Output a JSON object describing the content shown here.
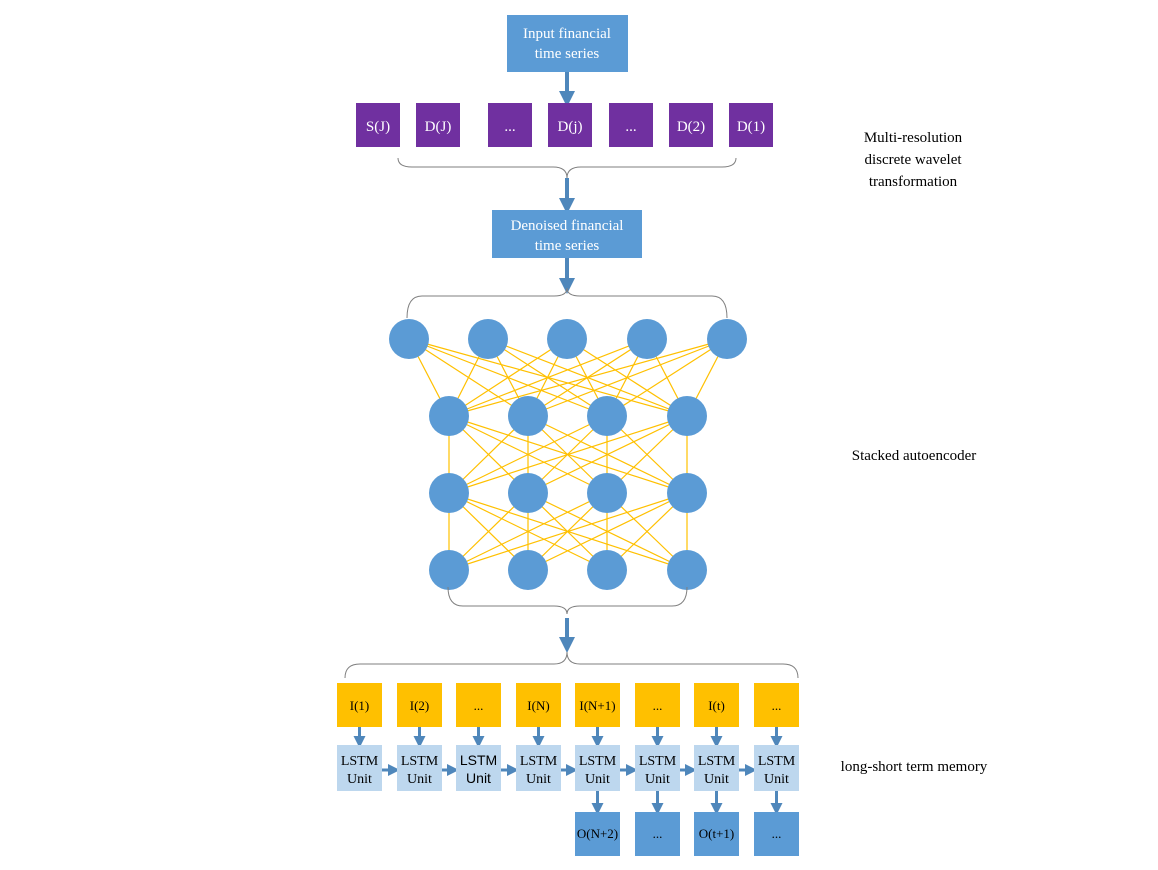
{
  "colors": {
    "blue_box": "#5b9bd5",
    "purple_box": "#7030a0",
    "orange_box": "#ffc000",
    "light_blue_box": "#bdd7ee",
    "output_box": "#5b9bd5",
    "arrow": "#4f87bb",
    "node": "#5b9bd5",
    "edge": "#ffc000",
    "brace": "#7f7f7f",
    "label_text": "#000000",
    "box_text": "#ffffff"
  },
  "input_box": {
    "line1": "Input financial",
    "line2": "time series"
  },
  "wavelet": {
    "components": [
      "S(J)",
      "D(J)",
      "...",
      "D(j)",
      "...",
      "D(2)",
      "D(1)"
    ],
    "label_lines": [
      "Multi-resolution",
      "discrete wavelet",
      "transformation"
    ]
  },
  "denoised_box": {
    "line1": "Denoised financial",
    "line2": "time series"
  },
  "autoencoder": {
    "layer_sizes": [
      5,
      4,
      4,
      4
    ],
    "label": "Stacked autoencoder"
  },
  "lstm": {
    "inputs": [
      "I(1)",
      "I(2)",
      "...",
      "I(N)",
      "I(N+1)",
      "...",
      "I(t)",
      "..."
    ],
    "unit_line1": "LSTM",
    "unit_line2": "Unit",
    "outputs": [
      "",
      "",
      "",
      "",
      "O(N+2)",
      "...",
      "O(t+1)",
      "..."
    ],
    "label": "long-short term memory"
  }
}
